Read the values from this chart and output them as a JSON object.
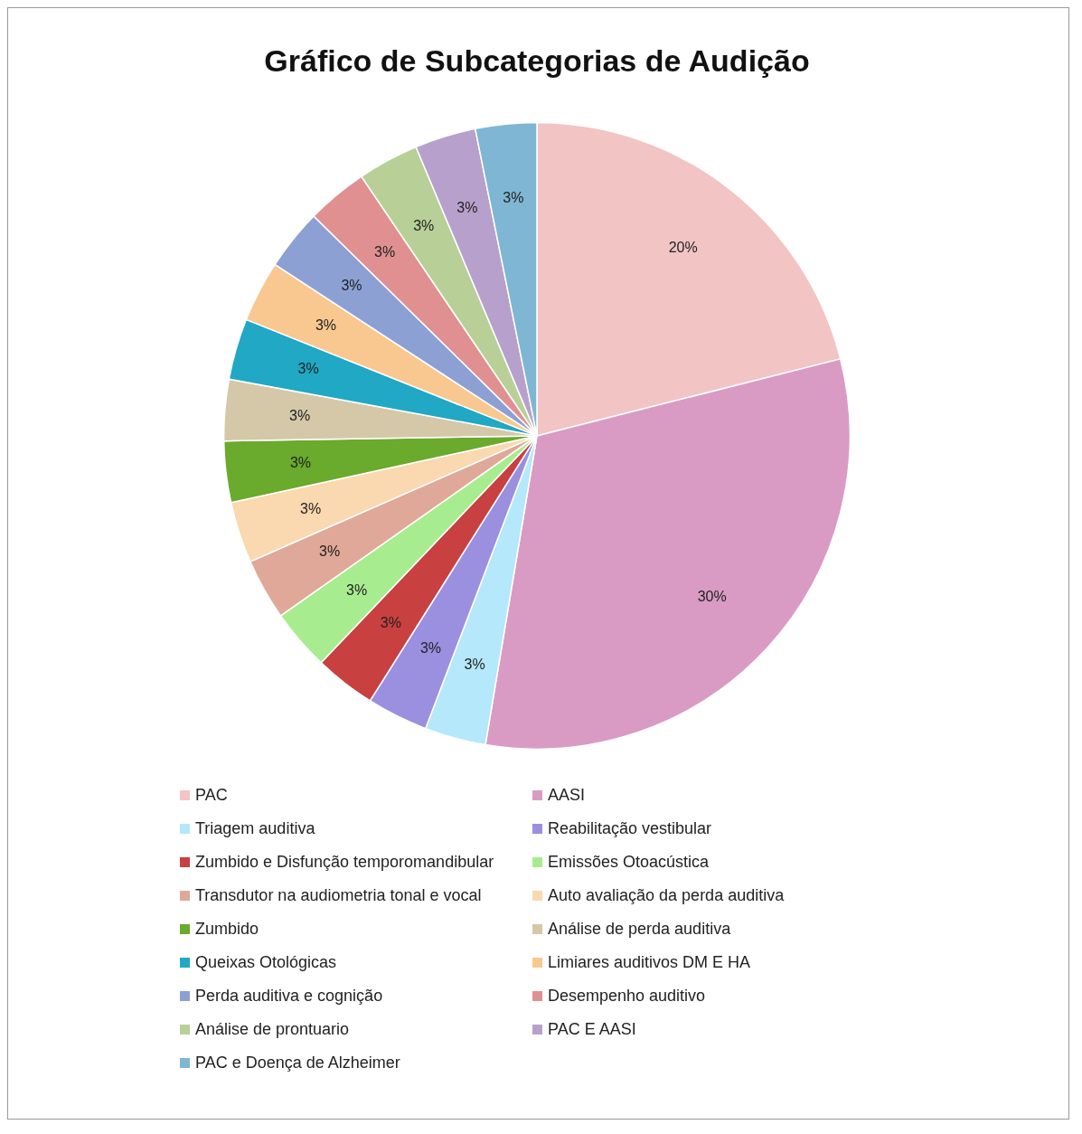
{
  "chart_data": {
    "type": "pie",
    "title": "Gráfico de Subcategorias de Audição",
    "categories": [
      "PAC",
      "AASI",
      "Triagem auditiva",
      "Reabilitação vestibular",
      "Zumbido e Disfunção temporomandibular",
      "Emissões Otoacústica",
      "Transdutor na audiometria tonal e vocal",
      "Auto avaliação da perda auditiva",
      "Zumbido",
      "Análise de perda auditiva",
      "Queixas Otológicas",
      "Limiares auditivos DM E HA",
      "Perda auditiva e cognição",
      "Desempenho auditivo",
      "Análise de prontuario",
      "PAC E AASI",
      "PAC e Doença de Alzheimer"
    ],
    "values": [
      20,
      30,
      3,
      3,
      3,
      3,
      3,
      3,
      3,
      3,
      3,
      3,
      3,
      3,
      3,
      3,
      3
    ],
    "value_labels": [
      "20%",
      "30%",
      "3%",
      "3%",
      "3%",
      "3%",
      "3%",
      "3%",
      "3%",
      "3%",
      "3%",
      "3%",
      "3%",
      "3%",
      "3%",
      "3%",
      "3%"
    ],
    "colors": [
      "#f2c4c4",
      "#d99bc4",
      "#b4e8fa",
      "#9b8fe0",
      "#c84040",
      "#a8ec90",
      "#e0a898",
      "#fad8b0",
      "#6aaa2c",
      "#d4c8a8",
      "#20a8c4",
      "#f8c890",
      "#8ca0d4",
      "#e09090",
      "#b8d098",
      "#b8a0cc",
      "#7fb6d4"
    ],
    "legend": "bottom"
  }
}
